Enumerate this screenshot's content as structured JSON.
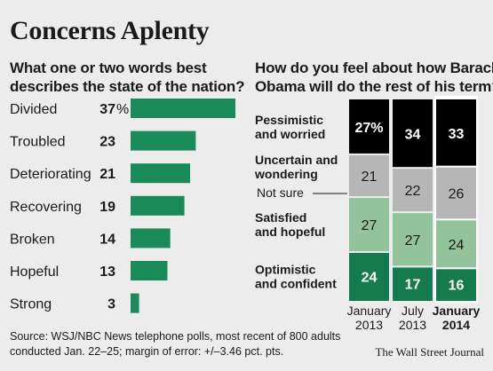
{
  "title": "Concerns Aplenty",
  "left_subtitle": [
    "What one or two words best",
    "describes the state of the nation?"
  ],
  "right_subtitle": [
    "How do you feel about how Barack",
    "Obama will do the rest of his term?"
  ],
  "source": [
    "Source: WSJ/NBC News telephone polls, most recent of 800 adults",
    "conducted Jan. 22–25; margin of error: +/–3.46 pct. pts."
  ],
  "credit": "The Wall Street Journal",
  "colors": {
    "bar_green": "#1a8a5a",
    "dark_green": "#157a4d",
    "light_green": "#93c39b",
    "gray": "#b6b6b6",
    "black": "#000000"
  },
  "chart_data": [
    {
      "type": "bar",
      "orientation": "horizontal",
      "title": "What one or two words best describes the state of the nation?",
      "categories": [
        "Divided",
        "Troubled",
        "Deteriorating",
        "Recovering",
        "Broken",
        "Hopeful",
        "Strong"
      ],
      "values": [
        37,
        23,
        21,
        19,
        14,
        13,
        3
      ],
      "value_labels": [
        "37%",
        "23",
        "21",
        "19",
        "14",
        "13",
        "3"
      ],
      "unit": "%"
    },
    {
      "type": "bar",
      "stacked": true,
      "title": "How do you feel about how Barack Obama will do the rest of his term?",
      "categories": [
        {
          "line1": "January",
          "line2": "2013",
          "bold": false
        },
        {
          "line1": "July",
          "line2": "2013",
          "bold": false
        },
        {
          "line1": "January",
          "line2": "2014",
          "bold": true
        }
      ],
      "series": [
        {
          "name": "Pessimistic and worried",
          "label_lines": [
            "Pessimistic",
            "and worried"
          ],
          "values": [
            27,
            34,
            33
          ],
          "value_labels": [
            "27%",
            "34",
            "33"
          ],
          "color": "#000000",
          "text_color": "#ffffff"
        },
        {
          "name": "Uncertain and wondering",
          "label_lines": [
            "Uncertain and",
            "wondering"
          ],
          "values": [
            21,
            22,
            26
          ],
          "value_labels": [
            "21",
            "22",
            "26"
          ],
          "color": "#b6b6b6",
          "text_color": "#1a1a1a"
        },
        {
          "name": "Satisfied and hopeful",
          "label_lines": [
            "Satisfied",
            "and hopeful"
          ],
          "values": [
            27,
            27,
            24
          ],
          "value_labels": [
            "27",
            "27",
            "24"
          ],
          "color": "#93c39b",
          "text_color": "#1a1a1a"
        },
        {
          "name": "Optimistic and confident",
          "label_lines": [
            "Optimistic",
            "and confident"
          ],
          "values": [
            24,
            17,
            16
          ],
          "value_labels": [
            "24",
            "17",
            "16"
          ],
          "color": "#157a4d",
          "text_color": "#ffffff"
        }
      ],
      "annotation": "Not sure"
    }
  ]
}
